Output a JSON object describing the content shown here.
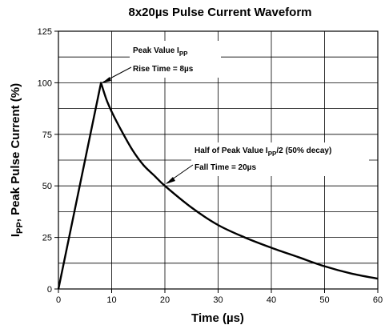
{
  "chart_data": {
    "type": "line",
    "title": "8x20µs Pulse Current Waveform",
    "xlabel": "Time (µs)",
    "ylabel": {
      "main": "I",
      "sub": "PP",
      "rest": ", Peak Pulse Current  (%)"
    },
    "xlim": [
      0,
      60
    ],
    "ylim": [
      0,
      125
    ],
    "x_ticks": [
      0,
      10,
      20,
      30,
      40,
      50,
      60
    ],
    "y_ticks": [
      0,
      25,
      50,
      75,
      100,
      125
    ],
    "grid": true,
    "series": [
      {
        "x": [
          0,
          8,
          9,
          10,
          12,
          14,
          16,
          18,
          20,
          25,
          30,
          35,
          40,
          45,
          50,
          55,
          60
        ],
        "y": [
          0,
          100,
          92,
          86,
          76,
          67,
          60,
          55,
          50,
          39.5,
          31,
          25,
          20,
          15.5,
          11,
          7.5,
          5
        ]
      }
    ],
    "annotations": [
      {
        "key": "peak",
        "line1_main": "Peak Value I",
        "line1_sub": "PP",
        "line1_rest": "",
        "line2": "Rise Time = 8µs",
        "point": [
          8,
          100
        ]
      },
      {
        "key": "half",
        "line1_main": "Half of Peak Value I",
        "line1_sub": "PP",
        "line1_rest": "/2 (50% decay)",
        "line2": "Fall Time = 20µs",
        "point": [
          20,
          50
        ]
      }
    ]
  }
}
